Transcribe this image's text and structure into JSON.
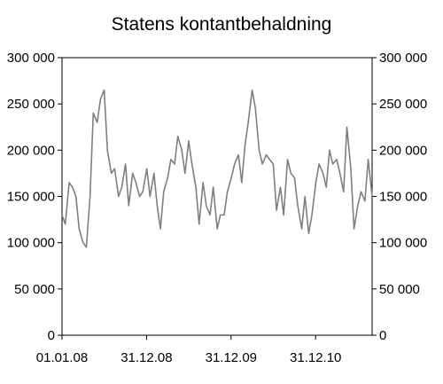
{
  "chart_data": {
    "type": "line",
    "title": "Statens kontantbehaldning",
    "xlabel": "",
    "ylabel": "",
    "x_tick_labels": [
      "01.01.08",
      "31.12.08",
      "31.12.09",
      "31.12.10"
    ],
    "y_tick_labels": [
      "0",
      "50 000",
      "100 000",
      "150 000",
      "200 000",
      "250 000",
      "300 000"
    ],
    "ylim": [
      0,
      300000
    ],
    "grid": false,
    "legend": "none",
    "line_color": "#7f7f7f",
    "series": [
      {
        "x": [
          "2008-01-01",
          "2008-01-15",
          "2008-02-01",
          "2008-02-15",
          "2008-03-01",
          "2008-03-15",
          "2008-04-01",
          "2008-04-15",
          "2008-05-01",
          "2008-05-15",
          "2008-06-01",
          "2008-06-15",
          "2008-07-01",
          "2008-07-15",
          "2008-08-01",
          "2008-08-15",
          "2008-09-01",
          "2008-09-15",
          "2008-10-01",
          "2008-10-15",
          "2008-11-01",
          "2008-11-15",
          "2008-12-01",
          "2008-12-15",
          "2009-01-01",
          "2009-01-15",
          "2009-02-01",
          "2009-02-15",
          "2009-03-01",
          "2009-03-15",
          "2009-04-01",
          "2009-04-15",
          "2009-05-01",
          "2009-05-15",
          "2009-06-01",
          "2009-06-15",
          "2009-07-01",
          "2009-07-15",
          "2009-08-01",
          "2009-08-15",
          "2009-09-01",
          "2009-09-15",
          "2009-10-01",
          "2009-10-15",
          "2009-11-01",
          "2009-11-15",
          "2009-12-01",
          "2009-12-15",
          "2010-01-01",
          "2010-01-15",
          "2010-02-01",
          "2010-02-15",
          "2010-03-01",
          "2010-03-15",
          "2010-04-01",
          "2010-04-15",
          "2010-05-01",
          "2010-05-15",
          "2010-06-01",
          "2010-06-15",
          "2010-07-01",
          "2010-07-15",
          "2010-08-01",
          "2010-08-15",
          "2010-09-01",
          "2010-09-15",
          "2010-10-01",
          "2010-10-15",
          "2010-11-01",
          "2010-11-15",
          "2010-12-01",
          "2010-12-15",
          "2011-01-01",
          "2011-01-15",
          "2011-02-01",
          "2011-02-15",
          "2011-03-01",
          "2011-03-15",
          "2011-04-01",
          "2011-04-15",
          "2011-05-01",
          "2011-05-15",
          "2011-06-01",
          "2011-06-15",
          "2011-07-01",
          "2011-07-15",
          "2011-08-01",
          "2011-08-15",
          "2011-09-01"
        ],
        "values": [
          130000,
          120000,
          165000,
          160000,
          150000,
          115000,
          100000,
          95000,
          150000,
          240000,
          230000,
          255000,
          265000,
          200000,
          175000,
          180000,
          150000,
          160000,
          185000,
          140000,
          175000,
          165000,
          150000,
          155000,
          180000,
          150000,
          175000,
          140000,
          115000,
          155000,
          170000,
          190000,
          185000,
          215000,
          200000,
          175000,
          210000,
          185000,
          160000,
          120000,
          165000,
          140000,
          130000,
          160000,
          115000,
          130000,
          130000,
          155000,
          170000,
          185000,
          195000,
          165000,
          205000,
          230000,
          265000,
          245000,
          200000,
          185000,
          195000,
          190000,
          185000,
          135000,
          160000,
          130000,
          190000,
          175000,
          170000,
          140000,
          115000,
          150000,
          110000,
          130000,
          165000,
          185000,
          175000,
          160000,
          200000,
          185000,
          190000,
          175000,
          155000,
          225000,
          180000,
          115000,
          140000,
          155000,
          145000,
          190000,
          150000
        ]
      }
    ]
  }
}
